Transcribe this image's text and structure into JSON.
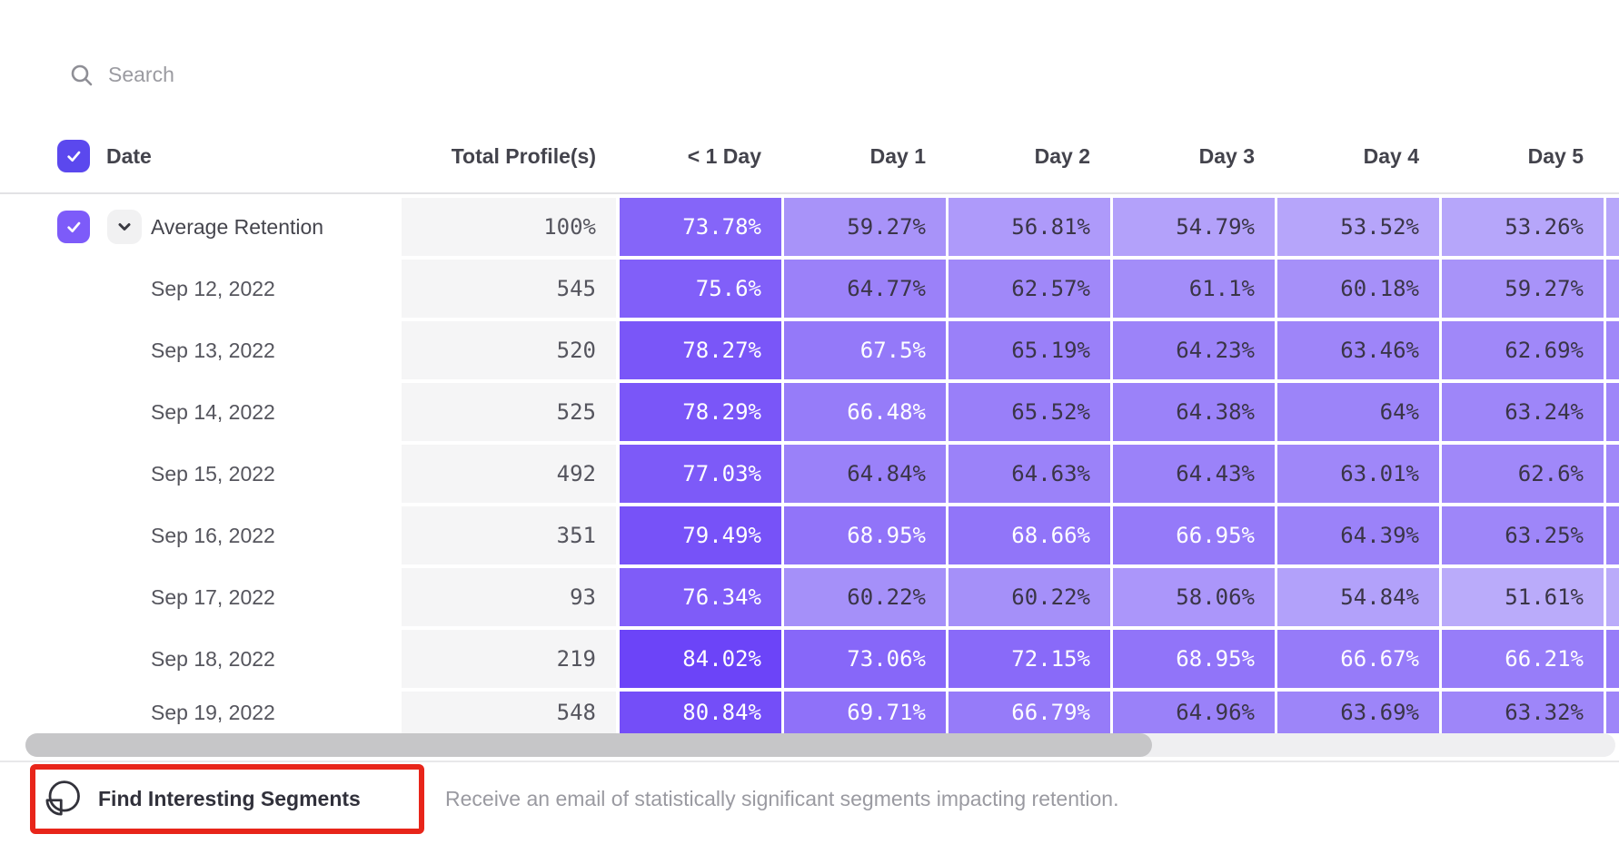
{
  "search": {
    "placeholder": "Search"
  },
  "table": {
    "columns": {
      "date": "Date",
      "total": "Total Profile(s)",
      "days": [
        "< 1 Day",
        "Day 1",
        "Day 2",
        "Day 3",
        "Day 4",
        "Day 5"
      ]
    },
    "rows": [
      {
        "label": "Average Retention",
        "is_average": true,
        "checked": true,
        "total": "100%",
        "values": [
          73.78,
          59.27,
          56.81,
          54.79,
          53.52,
          53.26
        ]
      },
      {
        "label": "Sep 12, 2022",
        "total": "545",
        "values": [
          75.6,
          64.77,
          62.57,
          61.1,
          60.18,
          59.27
        ]
      },
      {
        "label": "Sep 13, 2022",
        "total": "520",
        "values": [
          78.27,
          67.5,
          65.19,
          64.23,
          63.46,
          62.69
        ]
      },
      {
        "label": "Sep 14, 2022",
        "total": "525",
        "values": [
          78.29,
          66.48,
          65.52,
          64.38,
          64,
          63.24
        ]
      },
      {
        "label": "Sep 15, 2022",
        "total": "492",
        "values": [
          77.03,
          64.84,
          64.63,
          64.43,
          63.01,
          62.6
        ]
      },
      {
        "label": "Sep 16, 2022",
        "total": "351",
        "values": [
          79.49,
          68.95,
          68.66,
          66.95,
          64.39,
          63.25
        ]
      },
      {
        "label": "Sep 17, 2022",
        "total": "93",
        "values": [
          76.34,
          60.22,
          60.22,
          58.06,
          54.84,
          51.61
        ]
      },
      {
        "label": "Sep 18, 2022",
        "total": "219",
        "values": [
          84.02,
          73.06,
          72.15,
          68.95,
          66.67,
          66.21
        ]
      },
      {
        "label": "Sep 19, 2022",
        "total": "548",
        "values": [
          80.84,
          69.71,
          66.79,
          64.96,
          63.69,
          63.32
        ]
      }
    ],
    "heatmap": {
      "min_value": 50,
      "max_value": 85,
      "light_color": "#beb0fa",
      "dark_color": "#6a41f8",
      "white_text_threshold": 66
    },
    "header_checkbox_checked": true,
    "header_checkbox_color": "#5b48ee",
    "row_checkbox_color": "#7d5bf9"
  },
  "footer": {
    "button_label": "Find Interesting Segments",
    "description": "Receive an email of statistically significant segments impacting retention.",
    "annotation_color": "#e8251a"
  }
}
